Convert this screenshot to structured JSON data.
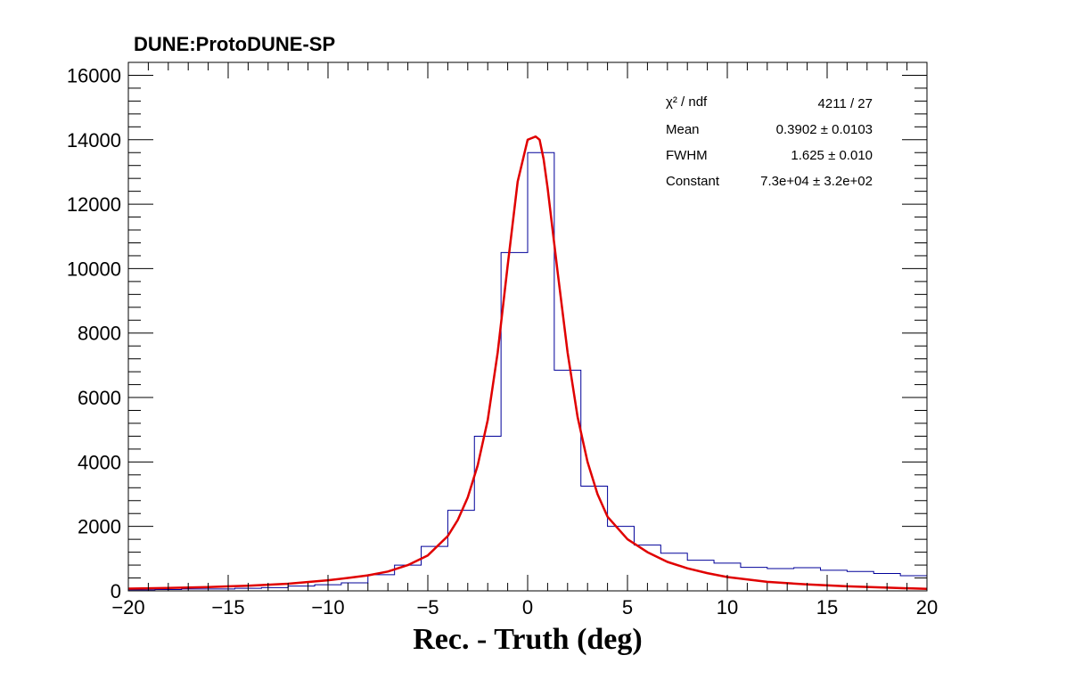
{
  "header": "DUNE:ProtoDUNE-SP",
  "stats": {
    "rows": [
      {
        "label": "χ² / ndf",
        "value": "4211 / 27"
      },
      {
        "label": "Mean",
        "value": "0.3902 ± 0.0103"
      },
      {
        "label": "FWHM",
        "value": "1.625 ± 0.010"
      },
      {
        "label": "Constant",
        "value": "7.3e+04 ± 3.2e+02"
      }
    ]
  },
  "colors": {
    "histogram": "#000099",
    "fit": "#e00000",
    "axes": "#000000"
  },
  "chart_data": {
    "type": "histogram",
    "title": "DUNE:ProtoDUNE-SP",
    "xlabel": "Rec. - Truth (deg)",
    "ylabel": "",
    "xlim": [
      -20,
      20
    ],
    "ylim": [
      0,
      16400
    ],
    "xticks": [
      -20,
      -15,
      -10,
      -5,
      0,
      5,
      10,
      15,
      20
    ],
    "xtick_labels": [
      "−20",
      "−15",
      "−10",
      "−5",
      "0",
      "5",
      "10",
      "15",
      "20"
    ],
    "yticks": [
      0,
      2000,
      4000,
      6000,
      8000,
      10000,
      12000,
      14000,
      16000
    ],
    "ytick_labels": [
      "0",
      "2000",
      "4000",
      "6000",
      "8000",
      "10000",
      "12000",
      "14000",
      "16000"
    ],
    "bin_edges": [
      -20,
      -18.667,
      -17.333,
      -16,
      -14.667,
      -13.333,
      -12,
      -10.667,
      -9.333,
      -8,
      -6.667,
      -5.333,
      -4,
      -2.667,
      -1.333,
      0,
      1.333,
      2.667,
      4,
      5.333,
      6.667,
      8,
      9.333,
      10.667,
      12,
      13.333,
      14.667,
      16,
      17.333,
      18.667,
      20
    ],
    "bin_values": [
      30,
      40,
      60,
      60,
      80,
      100,
      150,
      190,
      250,
      500,
      800,
      1380,
      2500,
      4800,
      10500,
      13600,
      6850,
      3250,
      2000,
      1420,
      1170,
      950,
      860,
      730,
      690,
      720,
      640,
      600,
      540,
      470
    ],
    "series": [
      {
        "type": "step",
        "values_ref": "bin_values"
      },
      {
        "type": "line",
        "x": [
          -20,
          -18,
          -16,
          -14,
          -12,
          -10,
          -9,
          -8,
          -7,
          -6,
          -5,
          -4,
          -3.5,
          -3,
          -2.5,
          -2,
          -1.5,
          -1,
          -0.5,
          0,
          0.2,
          0.4,
          0.6,
          0.8,
          1,
          1.5,
          2,
          2.5,
          3,
          3.5,
          4,
          5,
          6,
          7,
          8,
          9,
          10,
          12,
          14,
          16,
          18,
          20
        ],
        "y": [
          70,
          90,
          120,
          160,
          220,
          330,
          400,
          480,
          600,
          800,
          1100,
          1700,
          2200,
          2900,
          3900,
          5300,
          7400,
          10100,
          12700,
          14000,
          14050,
          14100,
          14000,
          13400,
          12500,
          9900,
          7400,
          5400,
          4000,
          3000,
          2300,
          1600,
          1200,
          900,
          700,
          550,
          430,
          280,
          200,
          140,
          100,
          60
        ]
      }
    ]
  }
}
